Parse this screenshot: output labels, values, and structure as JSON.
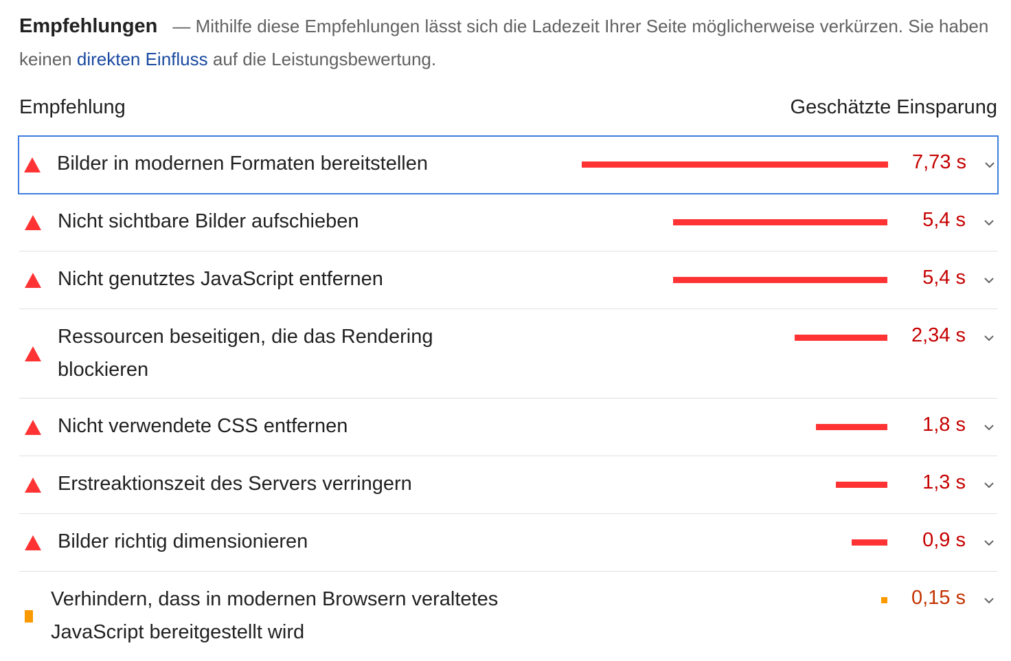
{
  "intro": {
    "heading": "Empfehlungen",
    "dash": "—",
    "text_1": "Mithilfe diese Empfehlungen lässt sich die Ladezeit Ihrer Seite möglicherweise verkürzen. Sie haben keinen",
    "link": "direkten Einfluss",
    "text_2": "auf die Leistungsbewertung."
  },
  "columns": {
    "left": "Empfehlung",
    "right": "Geschätzte Einsparung"
  },
  "colors": {
    "fail": "#ff3333",
    "fail_text": "#c60000",
    "average": "#fa9a00",
    "average_text": "#c33300",
    "link": "#1a4aa0",
    "focus_outline": "#3d7de0"
  },
  "items": [
    {
      "title": "Bilder in modernen Formaten bereitstellen",
      "savings": "7,73 s",
      "savings_seconds": 7.73,
      "status": "fail",
      "icon": "red-triangle-icon"
    },
    {
      "title": "Nicht sichtbare Bilder aufschieben",
      "savings": "5,4 s",
      "savings_seconds": 5.4,
      "status": "fail",
      "icon": "red-triangle-icon"
    },
    {
      "title": "Nicht genutztes JavaScript entfernen",
      "savings": "5,4 s",
      "savings_seconds": 5.4,
      "status": "fail",
      "icon": "red-triangle-icon"
    },
    {
      "title": "Ressourcen beseitigen, die das Rendering blockieren",
      "savings": "2,34 s",
      "savings_seconds": 2.34,
      "status": "fail",
      "icon": "red-triangle-icon"
    },
    {
      "title": "Nicht verwendete CSS entfernen",
      "savings": "1,8 s",
      "savings_seconds": 1.8,
      "status": "fail",
      "icon": "red-triangle-icon"
    },
    {
      "title": "Erstreaktionszeit des Servers verringern",
      "savings": "1,3 s",
      "savings_seconds": 1.3,
      "status": "fail",
      "icon": "red-triangle-icon"
    },
    {
      "title": "Bilder richtig dimensionieren",
      "savings": "0,9 s",
      "savings_seconds": 0.9,
      "status": "fail",
      "icon": "red-triangle-icon"
    },
    {
      "title": "Verhindern, dass in modernen Browsern veraltetes JavaScript bereitgestellt wird",
      "savings": "0,15 s",
      "savings_seconds": 0.15,
      "status": "average",
      "icon": "orange-square-icon"
    }
  ]
}
